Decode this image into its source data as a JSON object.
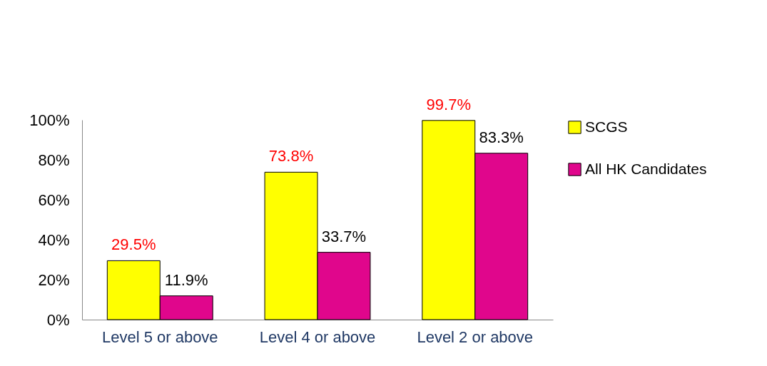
{
  "chart_data": {
    "type": "bar",
    "categories": [
      "Level 5 or above",
      "Level 4 or above",
      "Level 2 or above"
    ],
    "series": [
      {
        "name": "SCGS",
        "color": "#ffff00",
        "values": [
          29.5,
          73.8,
          99.7
        ],
        "value_labels": [
          "29.5%",
          "73.8%",
          "99.7%"
        ]
      },
      {
        "name": "All HK Candidates",
        "color": "#e0068c",
        "values": [
          11.9,
          33.7,
          83.3
        ],
        "value_labels": [
          "11.9%",
          "33.7%",
          "83.3%"
        ]
      }
    ],
    "ylim": [
      0,
      100
    ],
    "yticks": [
      {
        "value": 0,
        "label": "0%"
      },
      {
        "value": 20,
        "label": "20%"
      },
      {
        "value": 40,
        "label": "40%"
      },
      {
        "value": 60,
        "label": "60%"
      },
      {
        "value": 80,
        "label": "80%"
      },
      {
        "value": 100,
        "label": "100%"
      }
    ],
    "grid": false,
    "legend": "right"
  }
}
